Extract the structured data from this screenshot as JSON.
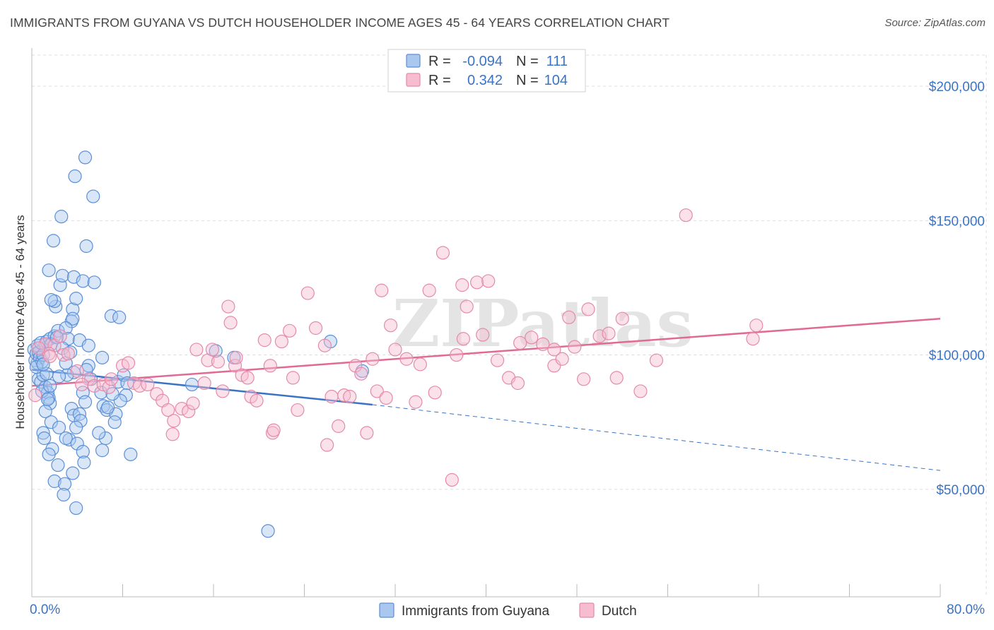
{
  "title": "IMMIGRANTS FROM GUYANA VS DUTCH HOUSEHOLDER INCOME AGES 45 - 64 YEARS CORRELATION CHART",
  "source": "Source: ZipAtlas.com",
  "watermark": "ZIPatlas",
  "colors": {
    "guyana_fill": "#a9c7ef",
    "guyana_stroke": "#5b8fd6",
    "guyana_line": "#3a73c6",
    "dutch_fill": "#f7bcd0",
    "dutch_stroke": "#e58aaa",
    "dutch_line": "#e06a94",
    "grid": "#dddddd",
    "axis_text": "#3a73c6"
  },
  "legend": {
    "rows": [
      {
        "r_label": "R =",
        "r_value": "-0.094",
        "n_label": "N =",
        "n_value": "111"
      },
      {
        "r_label": "R =",
        "r_value": "0.342",
        "n_label": "N =",
        "n_value": "104"
      }
    ]
  },
  "bottom_legend": {
    "items": [
      {
        "label": "Immigrants from Guyana"
      },
      {
        "label": "Dutch"
      }
    ]
  },
  "chart_data": {
    "type": "scatter",
    "title": "IMMIGRANTS FROM GUYANA VS DUTCH HOUSEHOLDER INCOME AGES 45 - 64 YEARS CORRELATION CHART",
    "xlabel": "",
    "ylabel": "Householder Income Ages 45 - 64 years",
    "xlim": [
      0,
      80
    ],
    "ylim": [
      10000,
      215000
    ],
    "x_tick_labels": [
      "0.0%",
      "80.0%"
    ],
    "y_ticks": [
      50000,
      100000,
      150000,
      200000
    ],
    "y_tick_labels": [
      "$50,000",
      "$100,000",
      "$150,000",
      "$200,000"
    ],
    "grid": true,
    "legend_position": "top-center",
    "series": [
      {
        "name": "Immigrants from Guyana",
        "R": -0.094,
        "N": 111,
        "trend": {
          "x0": 0,
          "y0": 94500,
          "x1": 30,
          "y1": 81500,
          "dashed_to_x": 80,
          "dashed_to_y": 57000
        },
        "points": [
          [
            0.2,
            102000
          ],
          [
            0.3,
            98000
          ],
          [
            0.4,
            100500
          ],
          [
            0.5,
            103500
          ],
          [
            0.5,
            97000
          ],
          [
            0.6,
            101000
          ],
          [
            0.7,
            99000
          ],
          [
            0.8,
            104500
          ],
          [
            0.9,
            97500
          ],
          [
            1.0,
            100000
          ],
          [
            0.6,
            91000
          ],
          [
            0.8,
            90000
          ],
          [
            1.0,
            92500
          ],
          [
            1.2,
            88000
          ],
          [
            1.4,
            86000
          ],
          [
            1.5,
            84000
          ],
          [
            1.6,
            82000
          ],
          [
            1.2,
            79000
          ],
          [
            1.7,
            75000
          ],
          [
            1.0,
            71000
          ],
          [
            1.1,
            69000
          ],
          [
            1.8,
            65000
          ],
          [
            1.5,
            63000
          ],
          [
            2.3,
            59000
          ],
          [
            2.0,
            53000
          ],
          [
            2.9,
            52000
          ],
          [
            2.8,
            48000
          ],
          [
            3.9,
            43000
          ],
          [
            1.3,
            105000
          ],
          [
            1.6,
            106000
          ],
          [
            2.0,
            107000
          ],
          [
            2.3,
            109000
          ],
          [
            2.1,
            118000
          ],
          [
            2.0,
            120000
          ],
          [
            1.7,
            120500
          ],
          [
            2.5,
            126000
          ],
          [
            2.7,
            129500
          ],
          [
            3.7,
            129000
          ],
          [
            4.5,
            127500
          ],
          [
            5.5,
            127000
          ],
          [
            1.5,
            131500
          ],
          [
            1.9,
            142500
          ],
          [
            2.6,
            151500
          ],
          [
            4.8,
            140500
          ],
          [
            3.8,
            166500
          ],
          [
            4.7,
            173500
          ],
          [
            5.4,
            159000
          ],
          [
            3.6,
            117000
          ],
          [
            3.9,
            121000
          ],
          [
            3.5,
            112500
          ],
          [
            3.6,
            113500
          ],
          [
            7.0,
            114500
          ],
          [
            7.7,
            114000
          ],
          [
            3.0,
            110000
          ],
          [
            3.2,
            106000
          ],
          [
            4.2,
            105500
          ],
          [
            5.0,
            103500
          ],
          [
            6.2,
            99000
          ],
          [
            5.0,
            96000
          ],
          [
            4.8,
            94500
          ],
          [
            3.7,
            93500
          ],
          [
            3.1,
            92500
          ],
          [
            2.4,
            92000
          ],
          [
            1.3,
            93000
          ],
          [
            5.2,
            91000
          ],
          [
            7.6,
            90000
          ],
          [
            8.1,
            92500
          ],
          [
            8.4,
            89500
          ],
          [
            8.3,
            85000
          ],
          [
            7.8,
            83000
          ],
          [
            6.3,
            81000
          ],
          [
            6.6,
            79500
          ],
          [
            7.4,
            78000
          ],
          [
            7.3,
            75000
          ],
          [
            4.5,
            86000
          ],
          [
            4.7,
            82500
          ],
          [
            3.5,
            80000
          ],
          [
            3.7,
            77500
          ],
          [
            4.2,
            78000
          ],
          [
            4.3,
            75500
          ],
          [
            3.9,
            73000
          ],
          [
            3.3,
            68500
          ],
          [
            3.0,
            69000
          ],
          [
            4.0,
            67000
          ],
          [
            4.5,
            64000
          ],
          [
            4.6,
            60000
          ],
          [
            3.6,
            56000
          ],
          [
            6.2,
            64500
          ],
          [
            6.5,
            69000
          ],
          [
            8.7,
            63000
          ],
          [
            14.1,
            89000
          ],
          [
            16.2,
            101500
          ],
          [
            17.8,
            99000
          ],
          [
            29.1,
            94000
          ],
          [
            26.3,
            105000
          ],
          [
            20.8,
            34500
          ],
          [
            0.4,
            95500
          ],
          [
            1.0,
            96500
          ],
          [
            1.7,
            104000
          ],
          [
            2.2,
            106500
          ],
          [
            2.7,
            102500
          ],
          [
            0.9,
            86500
          ],
          [
            1.4,
            83500
          ],
          [
            2.4,
            73000
          ],
          [
            5.9,
            71000
          ],
          [
            3.0,
            97000
          ],
          [
            6.1,
            86000
          ],
          [
            7.1,
            85500
          ],
          [
            6.7,
            80500
          ],
          [
            1.6,
            88500
          ],
          [
            3.4,
            101000
          ]
        ]
      },
      {
        "name": "Dutch",
        "R": 0.342,
        "N": 104,
        "trend": {
          "x0": 0,
          "y0": 88500,
          "x1": 80,
          "y1": 113500
        },
        "points": [
          [
            0.3,
            85000
          ],
          [
            1.2,
            104000
          ],
          [
            2.0,
            103500
          ],
          [
            2.8,
            100000
          ],
          [
            1.5,
            100500
          ],
          [
            2.5,
            107000
          ],
          [
            3.2,
            100500
          ],
          [
            4.0,
            94000
          ],
          [
            5.0,
            91000
          ],
          [
            4.4,
            89000
          ],
          [
            5.5,
            88500
          ],
          [
            6.3,
            89000
          ],
          [
            6.8,
            88000
          ],
          [
            7.0,
            91000
          ],
          [
            8.0,
            96000
          ],
          [
            8.5,
            97000
          ],
          [
            9.0,
            89500
          ],
          [
            9.5,
            88500
          ],
          [
            10.2,
            89000
          ],
          [
            11.0,
            85500
          ],
          [
            11.5,
            83000
          ],
          [
            12.0,
            79500
          ],
          [
            12.5,
            75500
          ],
          [
            12.4,
            70500
          ],
          [
            13.2,
            80000
          ],
          [
            13.8,
            79000
          ],
          [
            14.2,
            82000
          ],
          [
            14.5,
            102000
          ],
          [
            15.2,
            89500
          ],
          [
            15.5,
            98000
          ],
          [
            15.9,
            102000
          ],
          [
            16.4,
            97500
          ],
          [
            16.8,
            86500
          ],
          [
            17.3,
            118000
          ],
          [
            17.5,
            112000
          ],
          [
            17.9,
            96000
          ],
          [
            18.0,
            99000
          ],
          [
            18.5,
            92500
          ],
          [
            19.0,
            91500
          ],
          [
            19.3,
            84500
          ],
          [
            19.8,
            83000
          ],
          [
            20.5,
            105500
          ],
          [
            21.0,
            96000
          ],
          [
            21.2,
            71000
          ],
          [
            22.0,
            105000
          ],
          [
            22.7,
            109000
          ],
          [
            23.0,
            91500
          ],
          [
            23.4,
            79500
          ],
          [
            24.3,
            123000
          ],
          [
            25.0,
            110000
          ],
          [
            25.8,
            103500
          ],
          [
            26.0,
            66500
          ],
          [
            26.4,
            84500
          ],
          [
            27.0,
            73500
          ],
          [
            27.5,
            85000
          ],
          [
            28.0,
            84500
          ],
          [
            28.5,
            96000
          ],
          [
            29.0,
            93000
          ],
          [
            29.5,
            71000
          ],
          [
            30.0,
            98500
          ],
          [
            30.4,
            86500
          ],
          [
            30.8,
            124000
          ],
          [
            31.2,
            84000
          ],
          [
            31.6,
            111000
          ],
          [
            32.0,
            102000
          ],
          [
            33.0,
            98500
          ],
          [
            33.8,
            82500
          ],
          [
            34.2,
            96500
          ],
          [
            35.0,
            124000
          ],
          [
            35.5,
            86000
          ],
          [
            36.2,
            138000
          ],
          [
            37.0,
            53500
          ],
          [
            37.4,
            100000
          ],
          [
            37.9,
            126000
          ],
          [
            38.0,
            106000
          ],
          [
            38.3,
            118000
          ],
          [
            39.2,
            127000
          ],
          [
            39.7,
            107500
          ],
          [
            40.2,
            127500
          ],
          [
            41.0,
            98000
          ],
          [
            42.0,
            91500
          ],
          [
            43.0,
            104500
          ],
          [
            44.0,
            106500
          ],
          [
            45.0,
            104000
          ],
          [
            46.0,
            96000
          ],
          [
            46.7,
            98500
          ],
          [
            47.3,
            114000
          ],
          [
            47.8,
            103000
          ],
          [
            48.6,
            91000
          ],
          [
            49.0,
            117000
          ],
          [
            50.0,
            107000
          ],
          [
            50.8,
            108000
          ],
          [
            51.5,
            91500
          ],
          [
            52.0,
            113500
          ],
          [
            53.6,
            86500
          ],
          [
            55.0,
            98000
          ],
          [
            57.6,
            152000
          ],
          [
            63.5,
            106000
          ],
          [
            63.8,
            111000
          ],
          [
            42.8,
            89500
          ],
          [
            46.0,
            102000
          ],
          [
            21.3,
            72000
          ],
          [
            0.6,
            102500
          ],
          [
            1.6,
            99500
          ]
        ]
      }
    ]
  }
}
